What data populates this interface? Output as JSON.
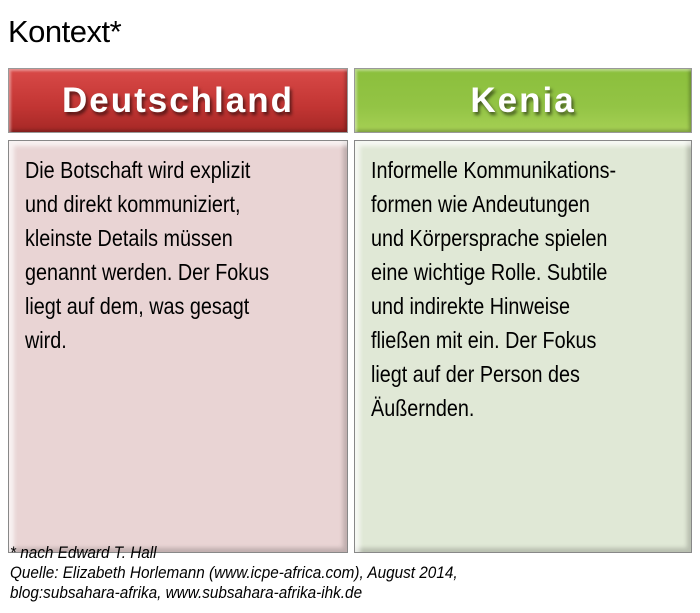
{
  "title": "Kontext*",
  "columns": [
    {
      "header": "Deutschland",
      "header_color": "#c23533",
      "body_color": "#e9d4d4",
      "lines": [
        "Die Botschaft wird explizit",
        "und direkt kommuniziert,",
        "kleinste Details müssen",
        "genannt werden. Der Fokus",
        "liegt auf dem, was gesagt",
        "wird."
      ]
    },
    {
      "header": "Kenia",
      "header_color": "#93c445",
      "body_color": "#e0e8d6",
      "lines": [
        "Informelle Kommunikations-",
        "formen wie Andeutungen",
        "und Körpersprache spielen",
        "eine wichtige Rolle. Subtile",
        "und indirekte Hinweise",
        "fließen mit ein. Der Fokus",
        "liegt auf der Person des",
        "Äußernden."
      ]
    }
  ],
  "footnote": [
    "* nach Edward T. Hall",
    "Quelle: Elizabeth Horlemann (www.icpe-africa.com), August 2014,",
    "blog:subsahara-afrika, www.subsahara-afrika-ihk.de"
  ]
}
